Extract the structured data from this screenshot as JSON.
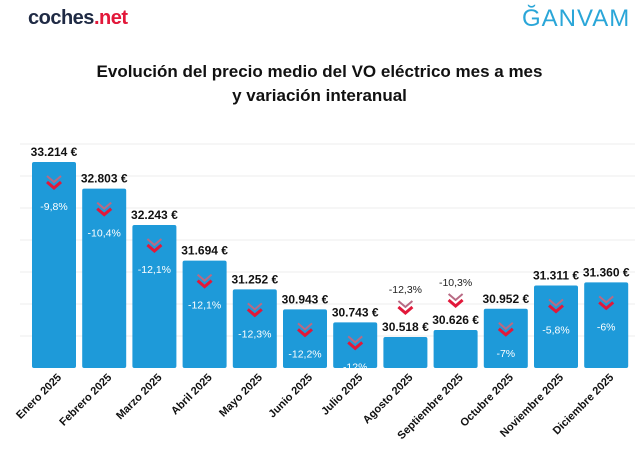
{
  "logos": {
    "left_main": "coches",
    "left_accent": ".net",
    "right": "ĞANVAM"
  },
  "chart_data": {
    "type": "bar",
    "title_line1": "Evolución del precio medio del VO eléctrico mes a mes",
    "title_line2": "y variación interanual",
    "categories": [
      "Enero 2025",
      "Febrero 2025",
      "Marzo 2025",
      "Abril 2025",
      "Mayo 2025",
      "Junio 2025",
      "Julio 2025",
      "Agosto 2025",
      "Septiembre 2025",
      "Octubre 2025",
      "Noviembre 2025",
      "Diciembre 2025"
    ],
    "values": [
      33214,
      32803,
      32243,
      31694,
      31252,
      30943,
      30743,
      30518,
      30626,
      30952,
      31311,
      31360
    ],
    "value_labels": [
      "33.214 €",
      "32.803 €",
      "32.243 €",
      "31.694 €",
      "31.252 €",
      "30.943 €",
      "30.743 €",
      "30.518 €",
      "30.626 €",
      "30.952 €",
      "31.311 €",
      "31.360 €"
    ],
    "yoy_variation": [
      "-9,8%",
      "-10,4%",
      "-12,1%",
      "-12,1%",
      "-12,3%",
      "-12,2%",
      "-12%",
      "-12,3%",
      "-10,3%",
      "-7%",
      "-5,8%",
      "-6%"
    ],
    "ylim": [
      30040,
      33400
    ],
    "grid": true,
    "bar_color": "#1e9ad9",
    "arrow_color": "#e2183a"
  }
}
